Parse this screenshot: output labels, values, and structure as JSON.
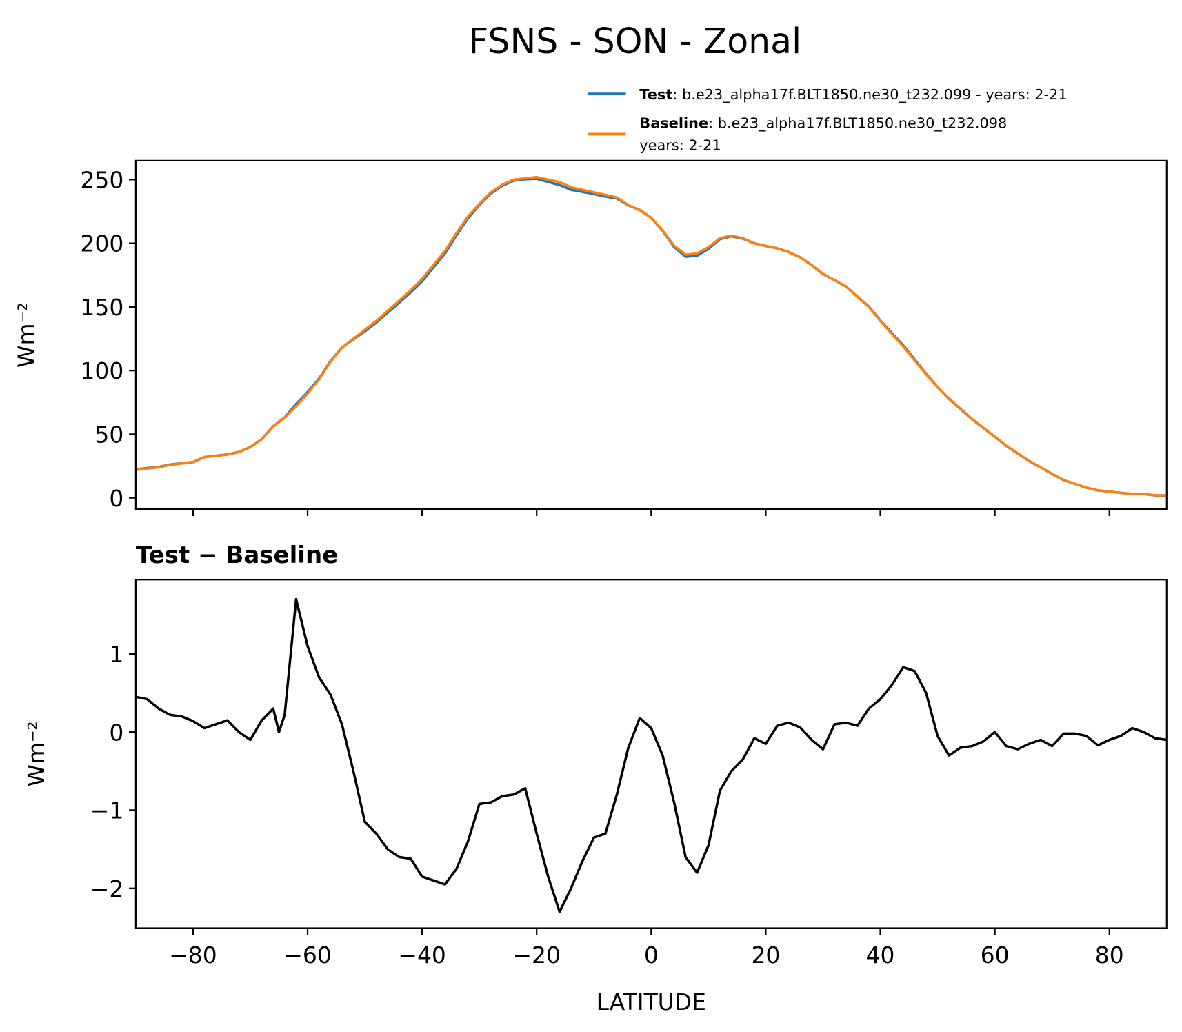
{
  "chart_data": [
    {
      "type": "line",
      "title": "FSNS - SON - Zonal",
      "ylabel": "Wm⁻²",
      "x": [
        -90,
        -88,
        -86,
        -84,
        -82,
        -80,
        -78,
        -76,
        -74,
        -72,
        -70,
        -68,
        -66,
        -64,
        -62,
        -60,
        -58,
        -56,
        -54,
        -52,
        -50,
        -48,
        -46,
        -44,
        -42,
        -40,
        -38,
        -36,
        -34,
        -32,
        -30,
        -28,
        -26,
        -24,
        -22,
        -20,
        -18,
        -16,
        -14,
        -12,
        -10,
        -8,
        -6,
        -4,
        -2,
        0,
        2,
        4,
        6,
        8,
        10,
        12,
        14,
        16,
        18,
        20,
        22,
        24,
        26,
        28,
        30,
        32,
        34,
        36,
        38,
        40,
        42,
        44,
        46,
        48,
        50,
        52,
        54,
        56,
        58,
        60,
        62,
        64,
        66,
        68,
        70,
        72,
        74,
        76,
        78,
        80,
        82,
        84,
        86,
        88,
        90
      ],
      "series": [
        {
          "name": "Test",
          "description": [
            ": b.e23_alpha17f.BLT1850.ne30_t232.099 - years: 2-21"
          ],
          "color": "#1f77b4",
          "values": [
            22.45,
            23.42,
            24.3,
            26.22,
            27.2,
            28.14,
            32.05,
            33.1,
            34.15,
            36,
            39.9,
            46.15,
            56.25,
            63.2,
            73.7,
            83.1,
            93.7,
            107.48,
            118.1,
            124.5,
            130.85,
            137.7,
            145.5,
            153.4,
            161.38,
            170.15,
            181.1,
            192.05,
            206.25,
            219.6,
            230.08,
            239.1,
            245.18,
            249.2,
            250.28,
            250.7,
            248.15,
            245.7,
            242,
            240.35,
            238.65,
            236.7,
            235.2,
            229.8,
            226.18,
            220.05,
            209.7,
            197.1,
            189.4,
            190.2,
            195.55,
            203.25,
            205.5,
            203.65,
            199.92,
            197.85,
            196.08,
            193.12,
            189.06,
            182.9,
            175.78,
            171.1,
            166.12,
            158.08,
            150.3,
            139.42,
            129.6,
            119.83,
            108.78,
            97.5,
            86.95,
            77.7,
            69.8,
            61.82,
            54.88,
            48,
            40.82,
            34.78,
            28.85,
            23.9,
            18.82,
            13.98,
            10.98,
            7.95,
            5.83,
            4.9,
            3.95,
            3.05,
            3,
            1.92,
            1.9
          ]
        },
        {
          "name": "Baseline",
          "description": [
            ": b.e23_alpha17f.BLT1850.ne30_t232.098",
            "years: 2-21"
          ],
          "color": "#ff7f0e",
          "values": [
            22,
            23,
            24,
            26,
            27,
            28,
            32,
            33,
            34,
            36,
            40,
            46,
            56,
            63,
            72,
            82,
            93,
            107,
            118,
            125,
            132,
            139,
            147,
            155,
            163,
            172,
            183,
            194,
            208,
            221,
            231,
            240,
            246,
            250,
            251,
            252,
            250,
            248,
            244,
            242,
            240,
            238,
            236,
            230,
            226,
            220,
            210,
            198,
            191,
            192,
            197,
            204,
            206,
            204,
            200,
            198,
            196,
            193,
            189,
            183,
            176,
            171,
            166,
            158,
            150,
            139,
            129,
            119,
            108,
            97,
            87,
            78,
            70,
            62,
            55,
            48,
            41,
            35,
            29,
            24,
            19,
            14,
            11,
            8,
            6,
            5,
            4,
            3,
            3,
            2,
            2
          ]
        }
      ],
      "xlim": [
        -90,
        90
      ],
      "xticks": [
        -80,
        -60,
        -40,
        -20,
        0,
        20,
        40,
        60,
        80
      ],
      "show_xtick_labels": false,
      "ylim": [
        -8.9,
        264.9
      ],
      "yticks": [
        0,
        50,
        100,
        150,
        200,
        250
      ]
    },
    {
      "type": "line",
      "title": "Test − Baseline",
      "xlabel": "LATITUDE",
      "ylabel": "Wm⁻²",
      "x": [
        -90,
        -88,
        -86,
        -84,
        -82,
        -80,
        -78,
        -76,
        -74,
        -72,
        -70,
        -68,
        -66,
        -65,
        -64,
        -62,
        -60,
        -58,
        -56,
        -54,
        -52,
        -50,
        -48,
        -46,
        -44,
        -42,
        -40,
        -38,
        -36,
        -34,
        -32,
        -30,
        -28,
        -26,
        -24,
        -22,
        -20,
        -18,
        -16,
        -14,
        -12,
        -10,
        -8,
        -6,
        -4,
        -2,
        0,
        2,
        4,
        6,
        8,
        10,
        12,
        14,
        16,
        18,
        20,
        22,
        24,
        26,
        28,
        30,
        32,
        34,
        36,
        38,
        40,
        42,
        44,
        46,
        48,
        50,
        52,
        54,
        56,
        58,
        60,
        62,
        64,
        66,
        68,
        70,
        72,
        74,
        76,
        78,
        80,
        82,
        84,
        86,
        88,
        90
      ],
      "series": [
        {
          "name": "Test − Baseline",
          "color": "#000000",
          "values": [
            0.45,
            0.42,
            0.3,
            0.22,
            0.2,
            0.14,
            0.05,
            0.1,
            0.15,
            0.0,
            -0.1,
            0.15,
            0.3,
            0.0,
            0.22,
            1.7,
            1.1,
            0.7,
            0.48,
            0.1,
            -0.5,
            -1.15,
            -1.3,
            -1.5,
            -1.6,
            -1.62,
            -1.85,
            -1.9,
            -1.95,
            -1.75,
            -1.4,
            -0.92,
            -0.9,
            -0.82,
            -0.8,
            -0.72,
            -1.3,
            -1.85,
            -2.3,
            -2.0,
            -1.65,
            -1.35,
            -1.3,
            -0.8,
            -0.2,
            0.18,
            0.05,
            -0.3,
            -0.9,
            -1.6,
            -1.8,
            -1.45,
            -0.75,
            -0.5,
            -0.35,
            -0.08,
            -0.15,
            0.08,
            0.12,
            0.06,
            -0.1,
            -0.22,
            0.1,
            0.12,
            0.08,
            0.3,
            0.42,
            0.6,
            0.83,
            0.78,
            0.5,
            -0.05,
            -0.3,
            -0.2,
            -0.18,
            -0.12,
            0.0,
            -0.18,
            -0.22,
            -0.15,
            -0.1,
            -0.18,
            -0.02,
            -0.02,
            -0.05,
            -0.17,
            -0.1,
            -0.05,
            0.05,
            0.0,
            -0.08,
            -0.1
          ]
        }
      ],
      "xlim": [
        -90,
        90
      ],
      "xticks": [
        {
          "value": -80,
          "label": "−80"
        },
        {
          "value": -60,
          "label": "−60"
        },
        {
          "value": -40,
          "label": "−40"
        },
        {
          "value": -20,
          "label": "−20"
        },
        0,
        20,
        40,
        60,
        80
      ],
      "show_xtick_labels": true,
      "ylim": [
        -2.51,
        1.95
      ],
      "yticks": [
        {
          "value": -2,
          "label": "−2"
        },
        {
          "value": -1,
          "label": "−1"
        },
        0,
        1
      ]
    }
  ]
}
